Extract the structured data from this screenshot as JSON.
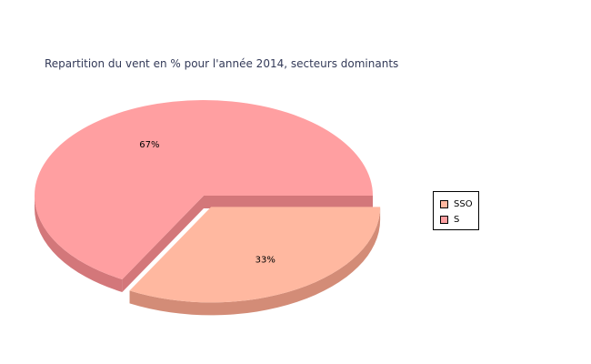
{
  "chart_data": {
    "type": "pie",
    "title": "Repartition du vent en % pour l'année 2014, secteurs dominants",
    "slices": [
      {
        "name": "SSO",
        "value": 33,
        "label": "33%",
        "color": "#ffb8a0",
        "side_color": "#d38c77"
      },
      {
        "name": "S",
        "value": 67,
        "label": "67%",
        "color": "#ff9fa1",
        "side_color": "#d3777a"
      }
    ],
    "legend_position": "right",
    "exploded_slice": "SSO",
    "style": "3d"
  }
}
